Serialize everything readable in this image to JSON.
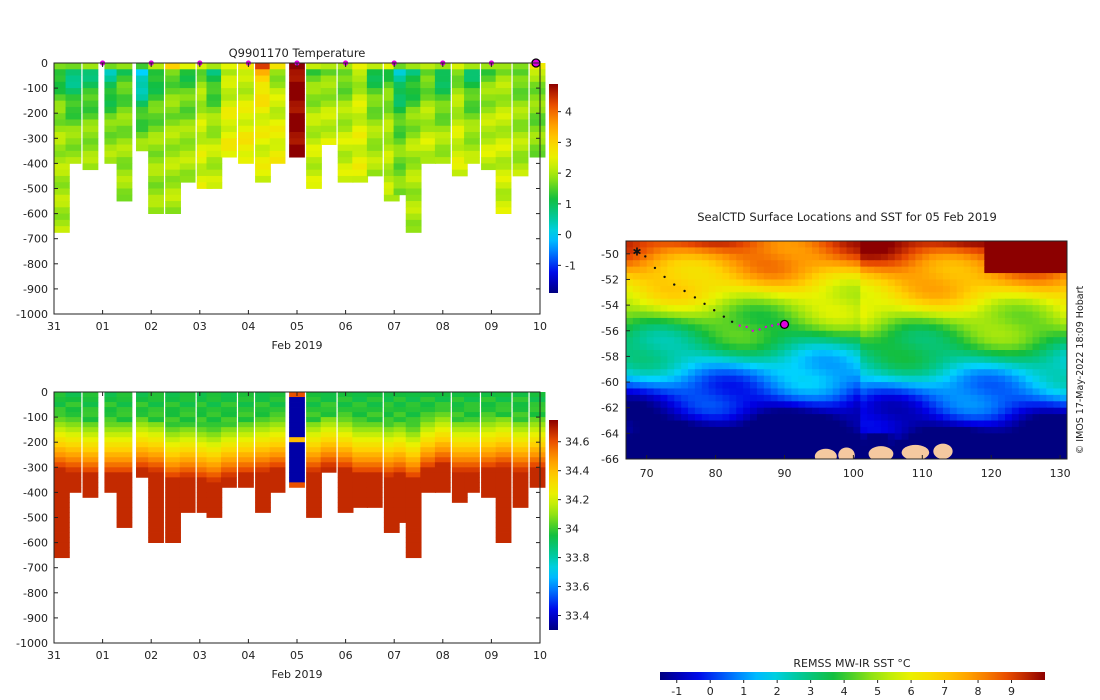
{
  "colors": {
    "background": "#ffffff",
    "axis": "#222222",
    "track": "#111111",
    "track_recent": "#e000e0",
    "land": "#f5c9a0"
  },
  "chart_data": [
    {
      "type": "heatmap",
      "title": "Q9901170  Temperature",
      "xlabel": "Feb 2019",
      "x_ticks": [
        "31",
        "01",
        "02",
        "03",
        "04",
        "05",
        "06",
        "07",
        "08",
        "09",
        "10"
      ],
      "y_ticks": [
        "0",
        "-100",
        "-200",
        "-300",
        "-400",
        "-500",
        "-600",
        "-700",
        "-800",
        "-900",
        "-1000"
      ],
      "ylim": [
        -1000,
        0
      ],
      "profile_markers_days": [
        1,
        2,
        3,
        4,
        5,
        6,
        7,
        8,
        9
      ],
      "colorbar": {
        "ticks": [
          "-1",
          "0",
          "1",
          "2",
          "3",
          "4"
        ],
        "range": [
          -1.9,
          4.9
        ]
      },
      "profiles": [
        {
          "d": 0.05,
          "depth": 660,
          "t": [
            2.2,
            1.0,
            1.4,
            1.8,
            2.0
          ]
        },
        {
          "d": 0.4,
          "depth": 400,
          "t": [
            2.0,
            0.6,
            0.9,
            1.5,
            1.9
          ]
        },
        {
          "d": 0.75,
          "depth": 420,
          "t": [
            2.3,
            0.8,
            1.2,
            1.6,
            1.9
          ]
        },
        {
          "d": 1.2,
          "depth": 400,
          "t": [
            2.4,
            0.5,
            1.0,
            1.5,
            1.9
          ]
        },
        {
          "d": 1.45,
          "depth": 530,
          "t": [
            2.6,
            1.2,
            1.5,
            1.7,
            1.9
          ]
        },
        {
          "d": 1.85,
          "depth": 330,
          "t": [
            2.8,
            -0.1,
            0.4,
            1.3,
            1.8
          ]
        },
        {
          "d": 2.1,
          "depth": 585,
          "t": [
            2.9,
            1.0,
            1.3,
            1.6,
            1.9
          ]
        },
        {
          "d": 2.45,
          "depth": 585,
          "t": [
            3.8,
            1.5,
            1.7,
            1.8,
            2.0
          ]
        },
        {
          "d": 2.75,
          "depth": 470,
          "t": [
            2.8,
            1.2,
            1.5,
            1.7,
            2.0
          ]
        },
        {
          "d": 3.1,
          "depth": 480,
          "t": [
            2.6,
            1.7,
            1.9,
            2.1,
            2.3
          ]
        },
        {
          "d": 3.3,
          "depth": 490,
          "t": [
            3.0,
            0.9,
            1.3,
            1.8,
            2.1
          ]
        },
        {
          "d": 3.6,
          "depth": 375,
          "t": [
            3.1,
            2.0,
            2.2,
            2.4,
            2.5
          ]
        },
        {
          "d": 3.95,
          "depth": 380,
          "t": [
            3.4,
            2.0,
            2.2,
            2.4,
            2.6
          ]
        },
        {
          "d": 4.3,
          "depth": 470,
          "t": [
            4.9,
            3.2,
            2.8,
            2.5,
            2.4
          ]
        },
        {
          "d": 4.6,
          "depth": 390,
          "t": [
            3.0,
            1.8,
            2.1,
            2.3,
            2.5
          ]
        },
        {
          "d": 5.0,
          "depth": 375,
          "t": [
            4.9,
            4.9,
            4.9,
            4.9,
            4.9
          ]
        },
        {
          "d": 5.35,
          "depth": 495,
          "t": [
            2.9,
            1.5,
            1.8,
            2.0,
            2.2
          ]
        },
        {
          "d": 5.65,
          "depth": 320,
          "t": [
            2.8,
            1.6,
            1.9,
            2.1,
            2.3
          ]
        },
        {
          "d": 6.0,
          "depth": 465,
          "t": [
            2.6,
            1.4,
            1.7,
            2.0,
            2.2
          ]
        },
        {
          "d": 6.3,
          "depth": 455,
          "t": [
            2.7,
            1.9,
            2.1,
            2.3,
            2.4
          ]
        },
        {
          "d": 6.6,
          "depth": 450,
          "t": [
            2.5,
            1.0,
            1.4,
            1.8,
            2.0
          ]
        },
        {
          "d": 6.95,
          "depth": 550,
          "t": [
            2.9,
            1.3,
            1.6,
            1.9,
            2.1
          ]
        },
        {
          "d": 7.15,
          "depth": 520,
          "t": [
            2.6,
            0.4,
            0.8,
            1.3,
            1.7
          ]
        },
        {
          "d": 7.4,
          "depth": 660,
          "t": [
            3.1,
            0.8,
            1.2,
            1.7,
            2.0
          ]
        },
        {
          "d": 7.7,
          "depth": 400,
          "t": [
            2.9,
            1.4,
            1.7,
            2.0,
            2.2
          ]
        },
        {
          "d": 8.0,
          "depth": 400,
          "t": [
            2.6,
            0.7,
            1.2,
            1.7,
            2.0
          ]
        },
        {
          "d": 8.35,
          "depth": 430,
          "t": [
            2.4,
            1.6,
            1.9,
            2.1,
            2.3
          ]
        },
        {
          "d": 8.6,
          "depth": 400,
          "t": [
            2.4,
            0.9,
            1.3,
            1.7,
            2.0
          ]
        },
        {
          "d": 8.95,
          "depth": 410,
          "t": [
            2.3,
            1.5,
            1.8,
            2.0,
            2.2
          ]
        },
        {
          "d": 9.25,
          "depth": 600,
          "t": [
            2.4,
            1.8,
            2.0,
            2.1,
            2.2
          ]
        },
        {
          "d": 9.6,
          "depth": 445,
          "t": [
            2.3,
            1.4,
            1.7,
            1.9,
            2.0
          ]
        },
        {
          "d": 9.95,
          "depth": 370,
          "t": [
            3.0,
            2.0,
            1.8,
            1.7,
            1.8
          ]
        }
      ]
    },
    {
      "type": "heatmap",
      "title": "",
      "xlabel": "Feb 2019",
      "x_ticks": [
        "31",
        "01",
        "02",
        "03",
        "04",
        "05",
        "06",
        "07",
        "08",
        "09",
        "10"
      ],
      "y_ticks": [
        "0",
        "-100",
        "-200",
        "-300",
        "-400",
        "-500",
        "-600",
        "-700",
        "-800",
        "-900",
        "-1000"
      ],
      "ylim": [
        -1000,
        0
      ],
      "colorbar": {
        "ticks": [
          "33.4",
          "33.6",
          "33.8",
          "34",
          "34.2",
          "34.4",
          "34.6"
        ],
        "range": [
          33.3,
          34.75
        ]
      },
      "halocline_depth_m": [
        110,
        120,
        130,
        130,
        130,
        110,
        120,
        150,
        140,
        150,
        160,
        140,
        130,
        120,
        110,
        0,
        120,
        100,
        110,
        130,
        130,
        140,
        130,
        150,
        110,
        90,
        120,
        120,
        110,
        100,
        120,
        110
      ]
    },
    {
      "type": "map",
      "title": "SealCTD Surface Locations and SST for 05 Feb 2019",
      "x_ticks": [
        "70",
        "80",
        "90",
        "100",
        "110",
        "120",
        "130"
      ],
      "y_ticks": [
        "-50",
        "-52",
        "-54",
        "-56",
        "-58",
        "-60",
        "-62",
        "-64",
        "-66"
      ],
      "xlim": [
        67,
        131
      ],
      "ylim": [
        -66,
        -49
      ],
      "credit": "© IMOS 17-May-2022 18:09 Hobart",
      "colorbar": {
        "title": "REMSS MW-IR SST °C",
        "ticks": [
          "-1",
          "0",
          "1",
          "2",
          "3",
          "4",
          "5",
          "6",
          "7",
          "8",
          "9"
        ],
        "range": [
          -1.5,
          10
        ]
      },
      "track": [
        {
          "lon": 68.6,
          "lat": -49.8
        },
        {
          "lon": 69.8,
          "lat": -50.2
        },
        {
          "lon": 71.2,
          "lat": -51.1
        },
        {
          "lon": 72.6,
          "lat": -51.8
        },
        {
          "lon": 74.0,
          "lat": -52.4
        },
        {
          "lon": 75.5,
          "lat": -52.9
        },
        {
          "lon": 77.0,
          "lat": -53.4
        },
        {
          "lon": 78.4,
          "lat": -53.9
        },
        {
          "lon": 79.8,
          "lat": -54.4
        },
        {
          "lon": 81.2,
          "lat": -54.9
        },
        {
          "lon": 82.4,
          "lat": -55.3
        },
        {
          "lon": 83.5,
          "lat": -55.6
        },
        {
          "lon": 84.5,
          "lat": -55.7
        },
        {
          "lon": 85.4,
          "lat": -56.0
        },
        {
          "lon": 86.4,
          "lat": -55.9
        },
        {
          "lon": 87.3,
          "lat": -55.7
        },
        {
          "lon": 88.2,
          "lat": -55.6
        },
        {
          "lon": 89.1,
          "lat": -55.5
        }
      ],
      "current_position": {
        "lon": 90.0,
        "lat": -55.5
      }
    }
  ]
}
